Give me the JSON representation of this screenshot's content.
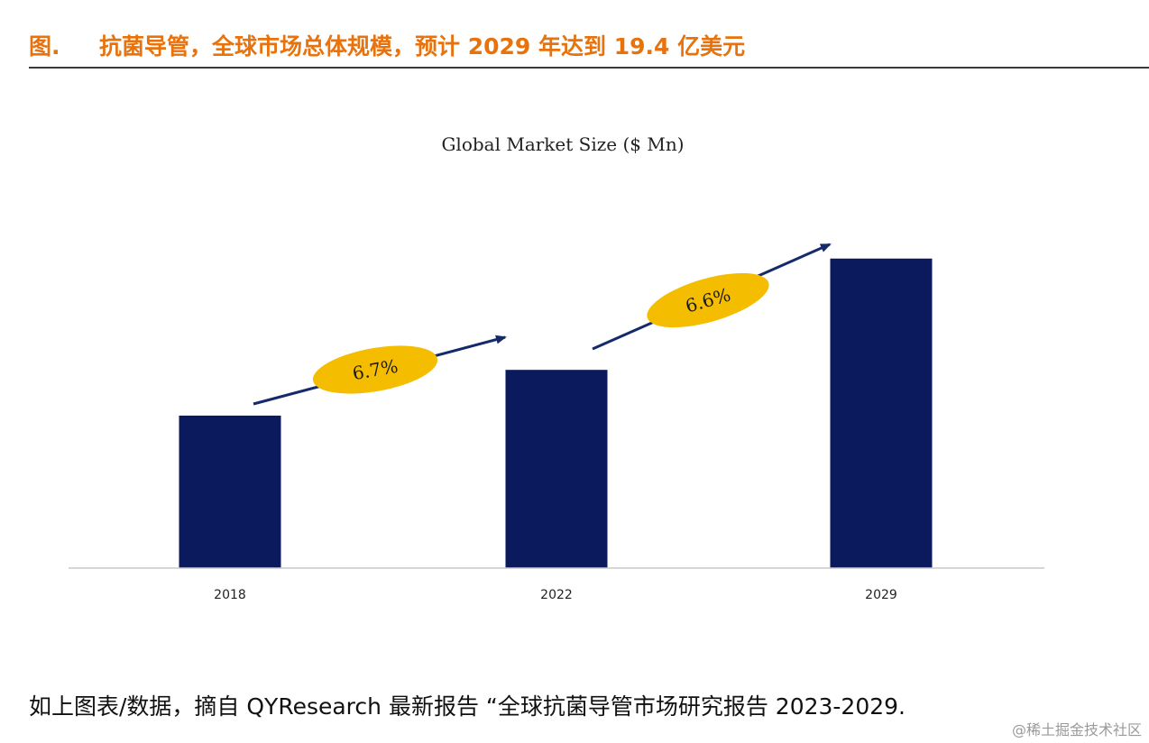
{
  "header": {
    "figure_label": "图.",
    "title": "抗菌导管，全球市场总体规模，预计 2029 年达到 19.4 亿美元"
  },
  "chart_data": {
    "type": "bar",
    "title": "Global Market Size ($ Mn)",
    "xlabel": "",
    "ylabel": "",
    "categories": [
      "2018",
      "2022",
      "2029"
    ],
    "values": [
      1.0,
      1.3,
      2.03
    ],
    "value_note": "relative bar heights; absolute values not printed",
    "ylim": [
      0,
      2.2
    ],
    "grid": false,
    "bar_color": "#0b1a5c",
    "annotations": [
      {
        "from": "2018",
        "to": "2022",
        "label": "6.7%"
      },
      {
        "from": "2022",
        "to": "2029",
        "label": "6.6%"
      }
    ],
    "annotation_color": "#f5bd00",
    "arrow_color": "#142a6b"
  },
  "footer": {
    "source_note": "如上图表/数据，摘自 QYResearch 最新报告 “全球抗菌导管市场研究报告 2023-2029.",
    "watermark": "@稀土掘金技术社区"
  }
}
